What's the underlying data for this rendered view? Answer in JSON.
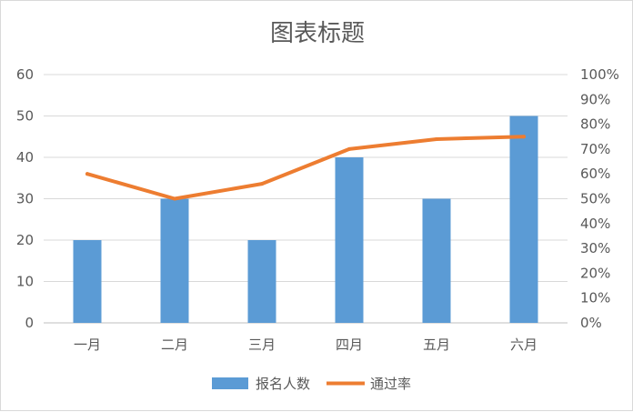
{
  "chart_data": {
    "type": "bar",
    "title": "图表标题",
    "categories": [
      "一月",
      "二月",
      "三月",
      "四月",
      "五月",
      "六月"
    ],
    "series": [
      {
        "name": "报名人数",
        "type": "bar",
        "axis": "left",
        "color": "#5B9BD5",
        "values": [
          20,
          30,
          20,
          40,
          30,
          50
        ]
      },
      {
        "name": "通过率",
        "type": "line",
        "axis": "right",
        "color": "#ED7D31",
        "values": [
          0.6,
          0.5,
          0.56,
          0.7,
          0.74,
          0.75
        ]
      }
    ],
    "y_left": {
      "min": 0,
      "max": 60,
      "ticks": [
        "0",
        "10",
        "20",
        "30",
        "40",
        "50",
        "60"
      ]
    },
    "y_right": {
      "min": 0,
      "max": 1,
      "ticks": [
        "0%",
        "10%",
        "20%",
        "30%",
        "40%",
        "50%",
        "60%",
        "70%",
        "80%",
        "90%",
        "100%"
      ]
    },
    "grid": true,
    "legend": "bottom"
  }
}
